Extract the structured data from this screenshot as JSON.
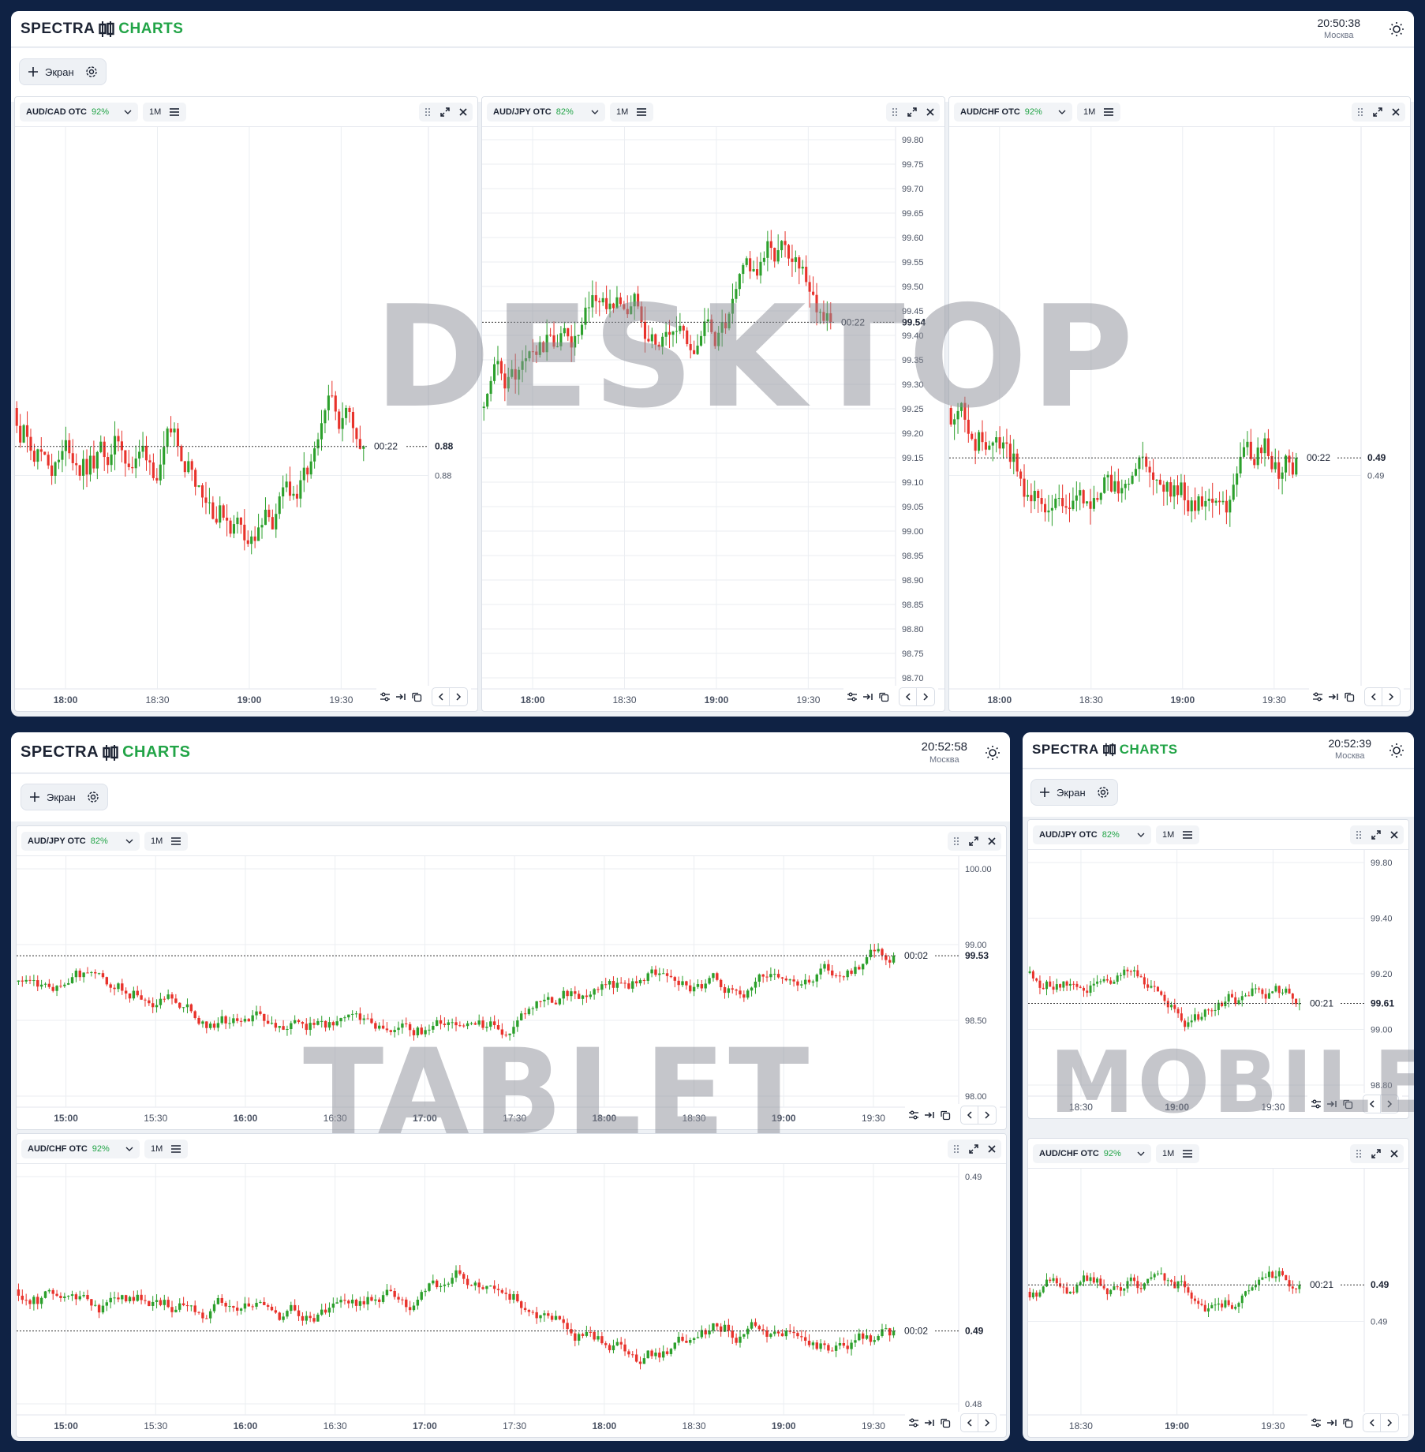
{
  "brand": {
    "word1": "SPECTRA",
    "word2": "CHARTS"
  },
  "desktop": {
    "clock": "20:50:38",
    "city": "Москва",
    "add_screen": "Экран",
    "watermark": "DESKTOP",
    "panels": [
      {
        "pair": "AUD/CAD OTC",
        "pct": "92%",
        "tf": "1M",
        "y_labels": [
          "0.88"
        ],
        "price_label": "0.88",
        "countdown": "00:22",
        "x_labels": [
          "18:00",
          "18:30",
          "19:00",
          "19:30"
        ]
      },
      {
        "pair": "AUD/JPY OTC",
        "pct": "82%",
        "tf": "1M",
        "y_labels": [
          "99.80",
          "99.75",
          "99.70",
          "99.65",
          "99.60",
          "99.55",
          "99.50",
          "99.45",
          "99.40",
          "99.35",
          "99.30",
          "99.25",
          "99.20",
          "99.15",
          "99.10",
          "99.05",
          "99.00",
          "98.95",
          "98.90",
          "98.85",
          "98.80",
          "98.75",
          "98.70"
        ],
        "price_label": "99.54",
        "countdown": "00:22",
        "x_labels": [
          "18:00",
          "18:30",
          "19:00",
          "19:30"
        ]
      },
      {
        "pair": "AUD/CHF OTC",
        "pct": "92%",
        "tf": "1M",
        "y_labels": [
          "0.49"
        ],
        "price_label": "0.49",
        "countdown": "00:22",
        "x_labels": [
          "18:00",
          "18:30",
          "19:00",
          "19:30"
        ]
      }
    ]
  },
  "tablet": {
    "clock": "20:52:58",
    "city": "Москва",
    "add_screen": "Экран",
    "watermark": "TABLET",
    "panels": [
      {
        "pair": "AUD/JPY OTC",
        "pct": "82%",
        "tf": "1M",
        "y_labels": [
          "100.00",
          "99.00",
          "98.50",
          "98.00"
        ],
        "price_label": "99.53",
        "countdown": "00:02",
        "x_labels": [
          "15:00",
          "15:30",
          "16:00",
          "16:30",
          "17:00",
          "17:30",
          "18:00",
          "18:30",
          "19:00",
          "19:30"
        ]
      },
      {
        "pair": "AUD/CHF OTC",
        "pct": "92%",
        "tf": "1M",
        "y_labels": [
          "0.49",
          "0.48"
        ],
        "price_label": "0.49",
        "countdown": "00:02",
        "x_labels": [
          "15:00",
          "15:30",
          "16:00",
          "16:30",
          "17:00",
          "17:30",
          "18:00",
          "18:30",
          "19:00",
          "19:30"
        ]
      }
    ]
  },
  "mobile": {
    "clock": "20:52:39",
    "city": "Москва",
    "add_screen": "Экран",
    "watermark": "MOBILE",
    "panels": [
      {
        "pair": "AUD/JPY OTC",
        "pct": "82%",
        "tf": "1M",
        "y_labels": [
          "99.80",
          "99.40",
          "99.20",
          "99.00",
          "98.80"
        ],
        "price_label": "99.61",
        "countdown": "00:21",
        "x_labels": [
          "18:30",
          "19:00",
          "19:30"
        ]
      },
      {
        "pair": "AUD/CHF OTC",
        "pct": "92%",
        "tf": "1M",
        "y_labels": [
          "0.49"
        ],
        "price_label": "0.49",
        "countdown": "00:21",
        "x_labels": [
          "18:30",
          "19:00",
          "19:30"
        ]
      }
    ]
  },
  "colors": {
    "up": "#2ca02c",
    "down": "#e8322b",
    "brand_green": "#22a447",
    "background": "#0f2244"
  }
}
